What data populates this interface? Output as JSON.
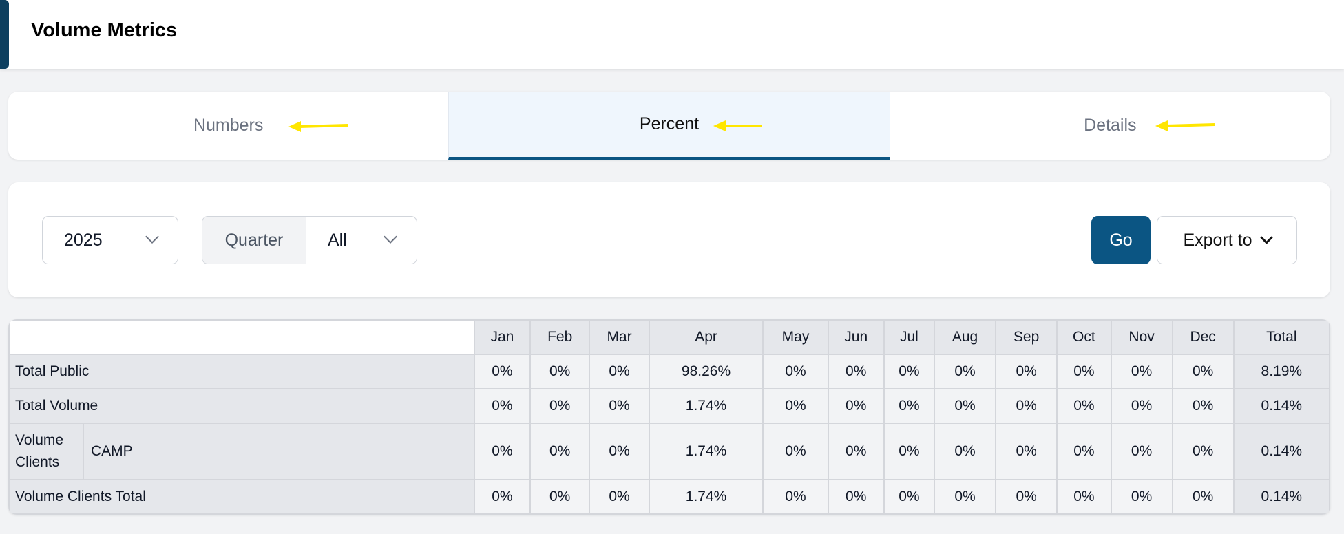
{
  "header": {
    "title": "Volume Metrics"
  },
  "tabs": [
    {
      "label": "Numbers",
      "active": false
    },
    {
      "label": "Percent",
      "active": true
    },
    {
      "label": "Details",
      "active": false
    }
  ],
  "filters": {
    "year": "2025",
    "quarter_label": "Quarter",
    "quarter": "All",
    "go": "Go",
    "export": "Export to"
  },
  "colors": {
    "primary": "#0b5583",
    "annotation_arrow": "#ffe600"
  },
  "table": {
    "columns": [
      "Jan",
      "Feb",
      "Mar",
      "Apr",
      "May",
      "Jun",
      "Jul",
      "Aug",
      "Sep",
      "Oct",
      "Nov",
      "Dec",
      "Total"
    ],
    "rows": [
      {
        "label": "Total Public",
        "values": [
          "0%",
          "0%",
          "0%",
          "98.26%",
          "0%",
          "0%",
          "0%",
          "0%",
          "0%",
          "0%",
          "0%",
          "0%",
          "8.19%"
        ]
      },
      {
        "label": "Total Volume",
        "values": [
          "0%",
          "0%",
          "0%",
          "1.74%",
          "0%",
          "0%",
          "0%",
          "0%",
          "0%",
          "0%",
          "0%",
          "0%",
          "0.14%"
        ]
      },
      {
        "group": "Volume Clients",
        "label": "CAMP",
        "values": [
          "0%",
          "0%",
          "0%",
          "1.74%",
          "0%",
          "0%",
          "0%",
          "0%",
          "0%",
          "0%",
          "0%",
          "0%",
          "0.14%"
        ]
      },
      {
        "label": "Volume Clients Total",
        "values": [
          "0%",
          "0%",
          "0%",
          "1.74%",
          "0%",
          "0%",
          "0%",
          "0%",
          "0%",
          "0%",
          "0%",
          "0%",
          "0.14%"
        ]
      }
    ]
  }
}
